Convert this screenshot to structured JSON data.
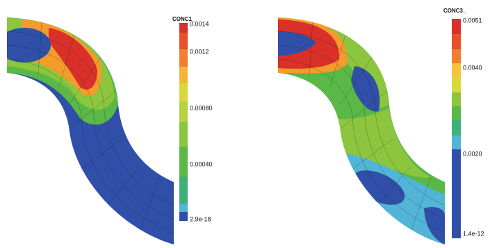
{
  "panels": [
    {
      "colorbar": {
        "title": "CONC1_",
        "ticks": [
          "0.0014",
          "0.0012",
          "0.00080",
          "0.00040",
          "2.9e-18"
        ]
      }
    },
    {
      "colorbar": {
        "title": "CONC3_",
        "ticks": [
          "0.0051",
          "0.0040",
          "0.0020",
          "1.4e-12"
        ]
      }
    }
  ]
}
